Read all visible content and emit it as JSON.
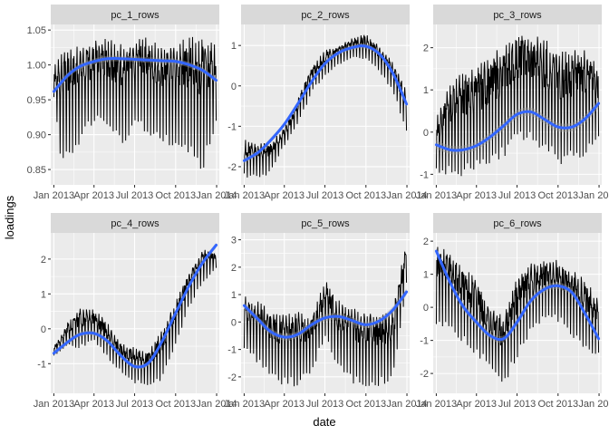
{
  "colors": {
    "panel": "#EBEBEB",
    "strip": "#D9D9D9",
    "grid": "#FFFFFF",
    "raw": "#000000",
    "smooth": "#3366FF",
    "band": "#999999"
  },
  "chart_data": {
    "type": "line",
    "facet_layout": "2 rows x 3 columns, free y scales",
    "xlabel": "date",
    "ylabel": "loadings",
    "x_range": [
      "2012-12-25",
      "2014-01-07"
    ],
    "x_ticks": [
      {
        "date": "2013-01-01",
        "label": "Jan 2013"
      },
      {
        "date": "2013-04-01",
        "label": "Apr 2013"
      },
      {
        "date": "2013-07-01",
        "label": "Jul 2013"
      },
      {
        "date": "2013-10-01",
        "label": "Oct 2013"
      },
      {
        "date": "2014-01-01",
        "label": "Jan 2014"
      }
    ],
    "grid": true,
    "facets": [
      {
        "name": "pc_1_rows",
        "ylim": [
          0.828,
          1.058
        ],
        "y_ticks": [
          0.85,
          0.9,
          0.95,
          1.0,
          1.05
        ],
        "y_tick_labels": [
          "0.85",
          "0.90",
          "0.95",
          "1.00",
          "1.05"
        ],
        "smooth_band": 0.004,
        "raw_series": [
          {
            "date": "2013-01-01",
            "low": 0.95,
            "high": 1.0
          },
          {
            "date": "2013-01-15",
            "low": 0.86,
            "high": 1.02
          },
          {
            "date": "2013-02-15",
            "low": 0.87,
            "high": 1.03
          },
          {
            "date": "2013-03-15",
            "low": 0.9,
            "high": 1.035
          },
          {
            "date": "2013-04-15",
            "low": 0.92,
            "high": 1.04
          },
          {
            "date": "2013-05-15",
            "low": 0.9,
            "high": 1.04
          },
          {
            "date": "2013-06-10",
            "low": 0.88,
            "high": 1.03
          },
          {
            "date": "2013-07-10",
            "low": 0.91,
            "high": 1.04
          },
          {
            "date": "2013-08-10",
            "low": 0.89,
            "high": 1.045
          },
          {
            "date": "2013-09-10",
            "low": 0.88,
            "high": 1.035
          },
          {
            "date": "2013-10-10",
            "low": 0.87,
            "high": 1.04
          },
          {
            "date": "2013-11-10",
            "low": 0.86,
            "high": 1.045
          },
          {
            "date": "2013-12-01",
            "low": 0.84,
            "high": 1.05
          },
          {
            "date": "2013-12-31",
            "low": 0.91,
            "high": 1.03
          }
        ],
        "smooth": [
          {
            "date": "2013-01-01",
            "y": 0.962
          },
          {
            "date": "2013-02-01",
            "y": 0.985
          },
          {
            "date": "2013-03-01",
            "y": 0.998
          },
          {
            "date": "2013-04-01",
            "y": 1.005
          },
          {
            "date": "2013-05-01",
            "y": 1.009
          },
          {
            "date": "2013-06-01",
            "y": 1.009
          },
          {
            "date": "2013-07-01",
            "y": 1.008
          },
          {
            "date": "2013-08-01",
            "y": 1.007
          },
          {
            "date": "2013-09-01",
            "y": 1.006
          },
          {
            "date": "2013-10-01",
            "y": 1.005
          },
          {
            "date": "2013-11-01",
            "y": 1.0
          },
          {
            "date": "2013-12-01",
            "y": 0.992
          },
          {
            "date": "2013-12-31",
            "y": 0.978
          }
        ]
      },
      {
        "name": "pc_2_rows",
        "ylim": [
          -2.45,
          1.52
        ],
        "y_ticks": [
          -2,
          -1,
          0,
          1
        ],
        "y_tick_labels": [
          "-2",
          "-1",
          "0",
          "1"
        ],
        "smooth_band": 0.06,
        "raw_series": [
          {
            "date": "2013-01-01",
            "low": -2.3,
            "high": -1.3
          },
          {
            "date": "2013-02-01",
            "low": -2.3,
            "high": -1.4
          },
          {
            "date": "2013-03-01",
            "low": -2.2,
            "high": -1.4
          },
          {
            "date": "2013-04-01",
            "low": -1.5,
            "high": -1.0
          },
          {
            "date": "2013-05-01",
            "low": -1.0,
            "high": -0.3
          },
          {
            "date": "2013-06-01",
            "low": -0.2,
            "high": 0.5
          },
          {
            "date": "2013-07-01",
            "low": 0.2,
            "high": 0.9
          },
          {
            "date": "2013-08-01",
            "low": 0.5,
            "high": 1.0
          },
          {
            "date": "2013-09-01",
            "low": 0.7,
            "high": 1.2
          },
          {
            "date": "2013-10-01",
            "low": 0.6,
            "high": 1.3
          },
          {
            "date": "2013-11-01",
            "low": 0.3,
            "high": 1.0
          },
          {
            "date": "2013-12-01",
            "low": -0.2,
            "high": 0.6
          },
          {
            "date": "2013-12-31",
            "low": -1.2,
            "high": -0.1
          }
        ],
        "smooth": [
          {
            "date": "2013-01-01",
            "y": -1.85
          },
          {
            "date": "2013-02-01",
            "y": -1.65
          },
          {
            "date": "2013-03-01",
            "y": -1.35
          },
          {
            "date": "2013-04-01",
            "y": -0.95
          },
          {
            "date": "2013-05-01",
            "y": -0.45
          },
          {
            "date": "2013-06-01",
            "y": 0.1
          },
          {
            "date": "2013-07-01",
            "y": 0.55
          },
          {
            "date": "2013-08-01",
            "y": 0.82
          },
          {
            "date": "2013-09-01",
            "y": 0.95
          },
          {
            "date": "2013-10-01",
            "y": 0.98
          },
          {
            "date": "2013-11-01",
            "y": 0.78
          },
          {
            "date": "2013-12-01",
            "y": 0.3
          },
          {
            "date": "2013-12-31",
            "y": -0.45
          }
        ]
      },
      {
        "name": "pc_3_rows",
        "ylim": [
          -1.25,
          2.55
        ],
        "y_ticks": [
          -1,
          0,
          1,
          2
        ],
        "y_tick_labels": [
          "-1",
          "0",
          "1",
          "2"
        ],
        "smooth_band": 0.1,
        "raw_series": [
          {
            "date": "2013-01-01",
            "low": -1.0,
            "high": 0.4
          },
          {
            "date": "2013-02-01",
            "low": -1.1,
            "high": 1.2
          },
          {
            "date": "2013-03-01",
            "low": -1.1,
            "high": 1.5
          },
          {
            "date": "2013-04-01",
            "low": -1.0,
            "high": 1.6
          },
          {
            "date": "2013-05-01",
            "low": -0.8,
            "high": 1.9
          },
          {
            "date": "2013-06-01",
            "low": -0.7,
            "high": 2.1
          },
          {
            "date": "2013-07-01",
            "low": -0.2,
            "high": 2.5
          },
          {
            "date": "2013-08-01",
            "low": -0.3,
            "high": 2.4
          },
          {
            "date": "2013-09-01",
            "low": -0.5,
            "high": 2.3
          },
          {
            "date": "2013-10-01",
            "low": -0.9,
            "high": 2.0
          },
          {
            "date": "2013-11-01",
            "low": -0.8,
            "high": 2.0
          },
          {
            "date": "2013-12-01",
            "low": -0.6,
            "high": 2.0
          },
          {
            "date": "2013-12-31",
            "low": -0.2,
            "high": 1.6
          }
        ],
        "smooth": [
          {
            "date": "2013-01-01",
            "y": -0.3
          },
          {
            "date": "2013-02-01",
            "y": -0.42
          },
          {
            "date": "2013-03-01",
            "y": -0.42
          },
          {
            "date": "2013-04-01",
            "y": -0.32
          },
          {
            "date": "2013-05-01",
            "y": -0.12
          },
          {
            "date": "2013-06-01",
            "y": 0.15
          },
          {
            "date": "2013-07-01",
            "y": 0.42
          },
          {
            "date": "2013-08-01",
            "y": 0.48
          },
          {
            "date": "2013-09-01",
            "y": 0.3
          },
          {
            "date": "2013-10-01",
            "y": 0.12
          },
          {
            "date": "2013-11-01",
            "y": 0.12
          },
          {
            "date": "2013-12-01",
            "y": 0.32
          },
          {
            "date": "2013-12-31",
            "y": 0.68
          }
        ]
      },
      {
        "name": "pc_4_rows",
        "ylim": [
          -1.85,
          2.75
        ],
        "y_ticks": [
          -1,
          0,
          1,
          2
        ],
        "y_tick_labels": [
          "-1",
          "0",
          "1",
          "2"
        ],
        "smooth_band": 0.07,
        "raw_series": [
          {
            "date": "2013-01-01",
            "low": -0.8,
            "high": -0.5
          },
          {
            "date": "2013-02-01",
            "low": -0.5,
            "high": 0.2
          },
          {
            "date": "2013-03-01",
            "low": -0.6,
            "high": 0.6
          },
          {
            "date": "2013-04-01",
            "low": -0.4,
            "high": 0.6
          },
          {
            "date": "2013-05-01",
            "low": -0.9,
            "high": 0.2
          },
          {
            "date": "2013-06-01",
            "low": -1.3,
            "high": -0.4
          },
          {
            "date": "2013-07-01",
            "low": -1.6,
            "high": -0.5
          },
          {
            "date": "2013-08-01",
            "low": -1.7,
            "high": -0.6
          },
          {
            "date": "2013-09-01",
            "low": -1.5,
            "high": 0.0
          },
          {
            "date": "2013-10-01",
            "low": -0.5,
            "high": 0.8
          },
          {
            "date": "2013-11-01",
            "low": 0.6,
            "high": 1.7
          },
          {
            "date": "2013-12-01",
            "low": 1.3,
            "high": 2.3
          },
          {
            "date": "2013-12-31",
            "low": 1.7,
            "high": 2.2
          }
        ],
        "smooth": [
          {
            "date": "2013-01-01",
            "y": -0.7
          },
          {
            "date": "2013-02-01",
            "y": -0.38
          },
          {
            "date": "2013-03-01",
            "y": -0.16
          },
          {
            "date": "2013-04-01",
            "y": -0.13
          },
          {
            "date": "2013-05-01",
            "y": -0.35
          },
          {
            "date": "2013-06-01",
            "y": -0.78
          },
          {
            "date": "2013-07-01",
            "y": -1.08
          },
          {
            "date": "2013-08-01",
            "y": -0.98
          },
          {
            "date": "2013-09-01",
            "y": -0.35
          },
          {
            "date": "2013-10-01",
            "y": 0.45
          },
          {
            "date": "2013-11-01",
            "y": 1.25
          },
          {
            "date": "2013-12-01",
            "y": 1.9
          },
          {
            "date": "2013-12-31",
            "y": 2.4
          }
        ]
      },
      {
        "name": "pc_5_rows",
        "ylim": [
          -2.6,
          3.25
        ],
        "y_ticks": [
          -2,
          -1,
          0,
          1,
          2,
          3
        ],
        "y_tick_labels": [
          "-2",
          "-1",
          "0",
          "1",
          "2",
          "3"
        ],
        "smooth_band": 0.12,
        "raw_series": [
          {
            "date": "2013-01-01",
            "low": -1.0,
            "high": 1.0
          },
          {
            "date": "2013-02-01",
            "low": -1.6,
            "high": 0.8
          },
          {
            "date": "2013-03-01",
            "low": -2.2,
            "high": 0.5
          },
          {
            "date": "2013-04-01",
            "low": -2.4,
            "high": 0.3
          },
          {
            "date": "2013-05-01",
            "low": -2.4,
            "high": 0.5
          },
          {
            "date": "2013-06-01",
            "low": -2.0,
            "high": 0.3
          },
          {
            "date": "2013-07-01",
            "low": -0.6,
            "high": 1.6
          },
          {
            "date": "2013-08-01",
            "low": -1.8,
            "high": 0.9
          },
          {
            "date": "2013-09-01",
            "low": -2.3,
            "high": 0.6
          },
          {
            "date": "2013-10-01",
            "low": -2.4,
            "high": 0.5
          },
          {
            "date": "2013-11-01",
            "low": -2.4,
            "high": 0.3
          },
          {
            "date": "2013-12-01",
            "low": -2.2,
            "high": 0.6
          },
          {
            "date": "2013-12-31",
            "low": 1.3,
            "high": 3.0
          }
        ],
        "smooth": [
          {
            "date": "2013-01-01",
            "y": 0.6
          },
          {
            "date": "2013-02-01",
            "y": 0.1
          },
          {
            "date": "2013-03-01",
            "y": -0.35
          },
          {
            "date": "2013-04-01",
            "y": -0.55
          },
          {
            "date": "2013-05-01",
            "y": -0.45
          },
          {
            "date": "2013-06-01",
            "y": -0.1
          },
          {
            "date": "2013-07-01",
            "y": 0.15
          },
          {
            "date": "2013-08-01",
            "y": 0.2
          },
          {
            "date": "2013-09-01",
            "y": 0.05
          },
          {
            "date": "2013-10-01",
            "y": -0.1
          },
          {
            "date": "2013-11-01",
            "y": 0.05
          },
          {
            "date": "2013-12-01",
            "y": 0.45
          },
          {
            "date": "2013-12-31",
            "y": 1.1
          }
        ]
      },
      {
        "name": "pc_6_rows",
        "ylim": [
          -2.6,
          2.25
        ],
        "y_ticks": [
          -2,
          -1,
          0,
          1,
          2
        ],
        "y_tick_labels": [
          "-2",
          "-1",
          "0",
          "1",
          "2"
        ],
        "smooth_band": 0.1,
        "raw_series": [
          {
            "date": "2013-01-01",
            "low": -0.6,
            "high": 1.9
          },
          {
            "date": "2013-02-01",
            "low": -0.8,
            "high": 1.8
          },
          {
            "date": "2013-03-01",
            "low": -1.1,
            "high": 1.3
          },
          {
            "date": "2013-04-01",
            "low": -1.5,
            "high": 0.9
          },
          {
            "date": "2013-05-01",
            "low": -1.9,
            "high": 0.1
          },
          {
            "date": "2013-06-01",
            "low": -2.5,
            "high": -0.2
          },
          {
            "date": "2013-07-01",
            "low": -1.6,
            "high": 1.0
          },
          {
            "date": "2013-08-01",
            "low": -0.9,
            "high": 1.4
          },
          {
            "date": "2013-09-01",
            "low": -0.4,
            "high": 1.5
          },
          {
            "date": "2013-10-01",
            "low": -0.5,
            "high": 1.5
          },
          {
            "date": "2013-11-01",
            "low": -0.9,
            "high": 1.2
          },
          {
            "date": "2013-12-01",
            "low": -1.4,
            "high": 0.9
          },
          {
            "date": "2013-12-31",
            "low": -1.6,
            "high": 0.3
          }
        ],
        "smooth": [
          {
            "date": "2013-01-01",
            "y": 1.7
          },
          {
            "date": "2013-02-01",
            "y": 0.75
          },
          {
            "date": "2013-03-01",
            "y": 0.05
          },
          {
            "date": "2013-04-01",
            "y": -0.45
          },
          {
            "date": "2013-05-01",
            "y": -0.85
          },
          {
            "date": "2013-06-01",
            "y": -0.95
          },
          {
            "date": "2013-07-01",
            "y": -0.45
          },
          {
            "date": "2013-08-01",
            "y": 0.2
          },
          {
            "date": "2013-09-01",
            "y": 0.55
          },
          {
            "date": "2013-10-01",
            "y": 0.65
          },
          {
            "date": "2013-11-01",
            "y": 0.45
          },
          {
            "date": "2013-12-01",
            "y": -0.2
          },
          {
            "date": "2013-12-31",
            "y": -0.95
          }
        ]
      }
    ]
  }
}
